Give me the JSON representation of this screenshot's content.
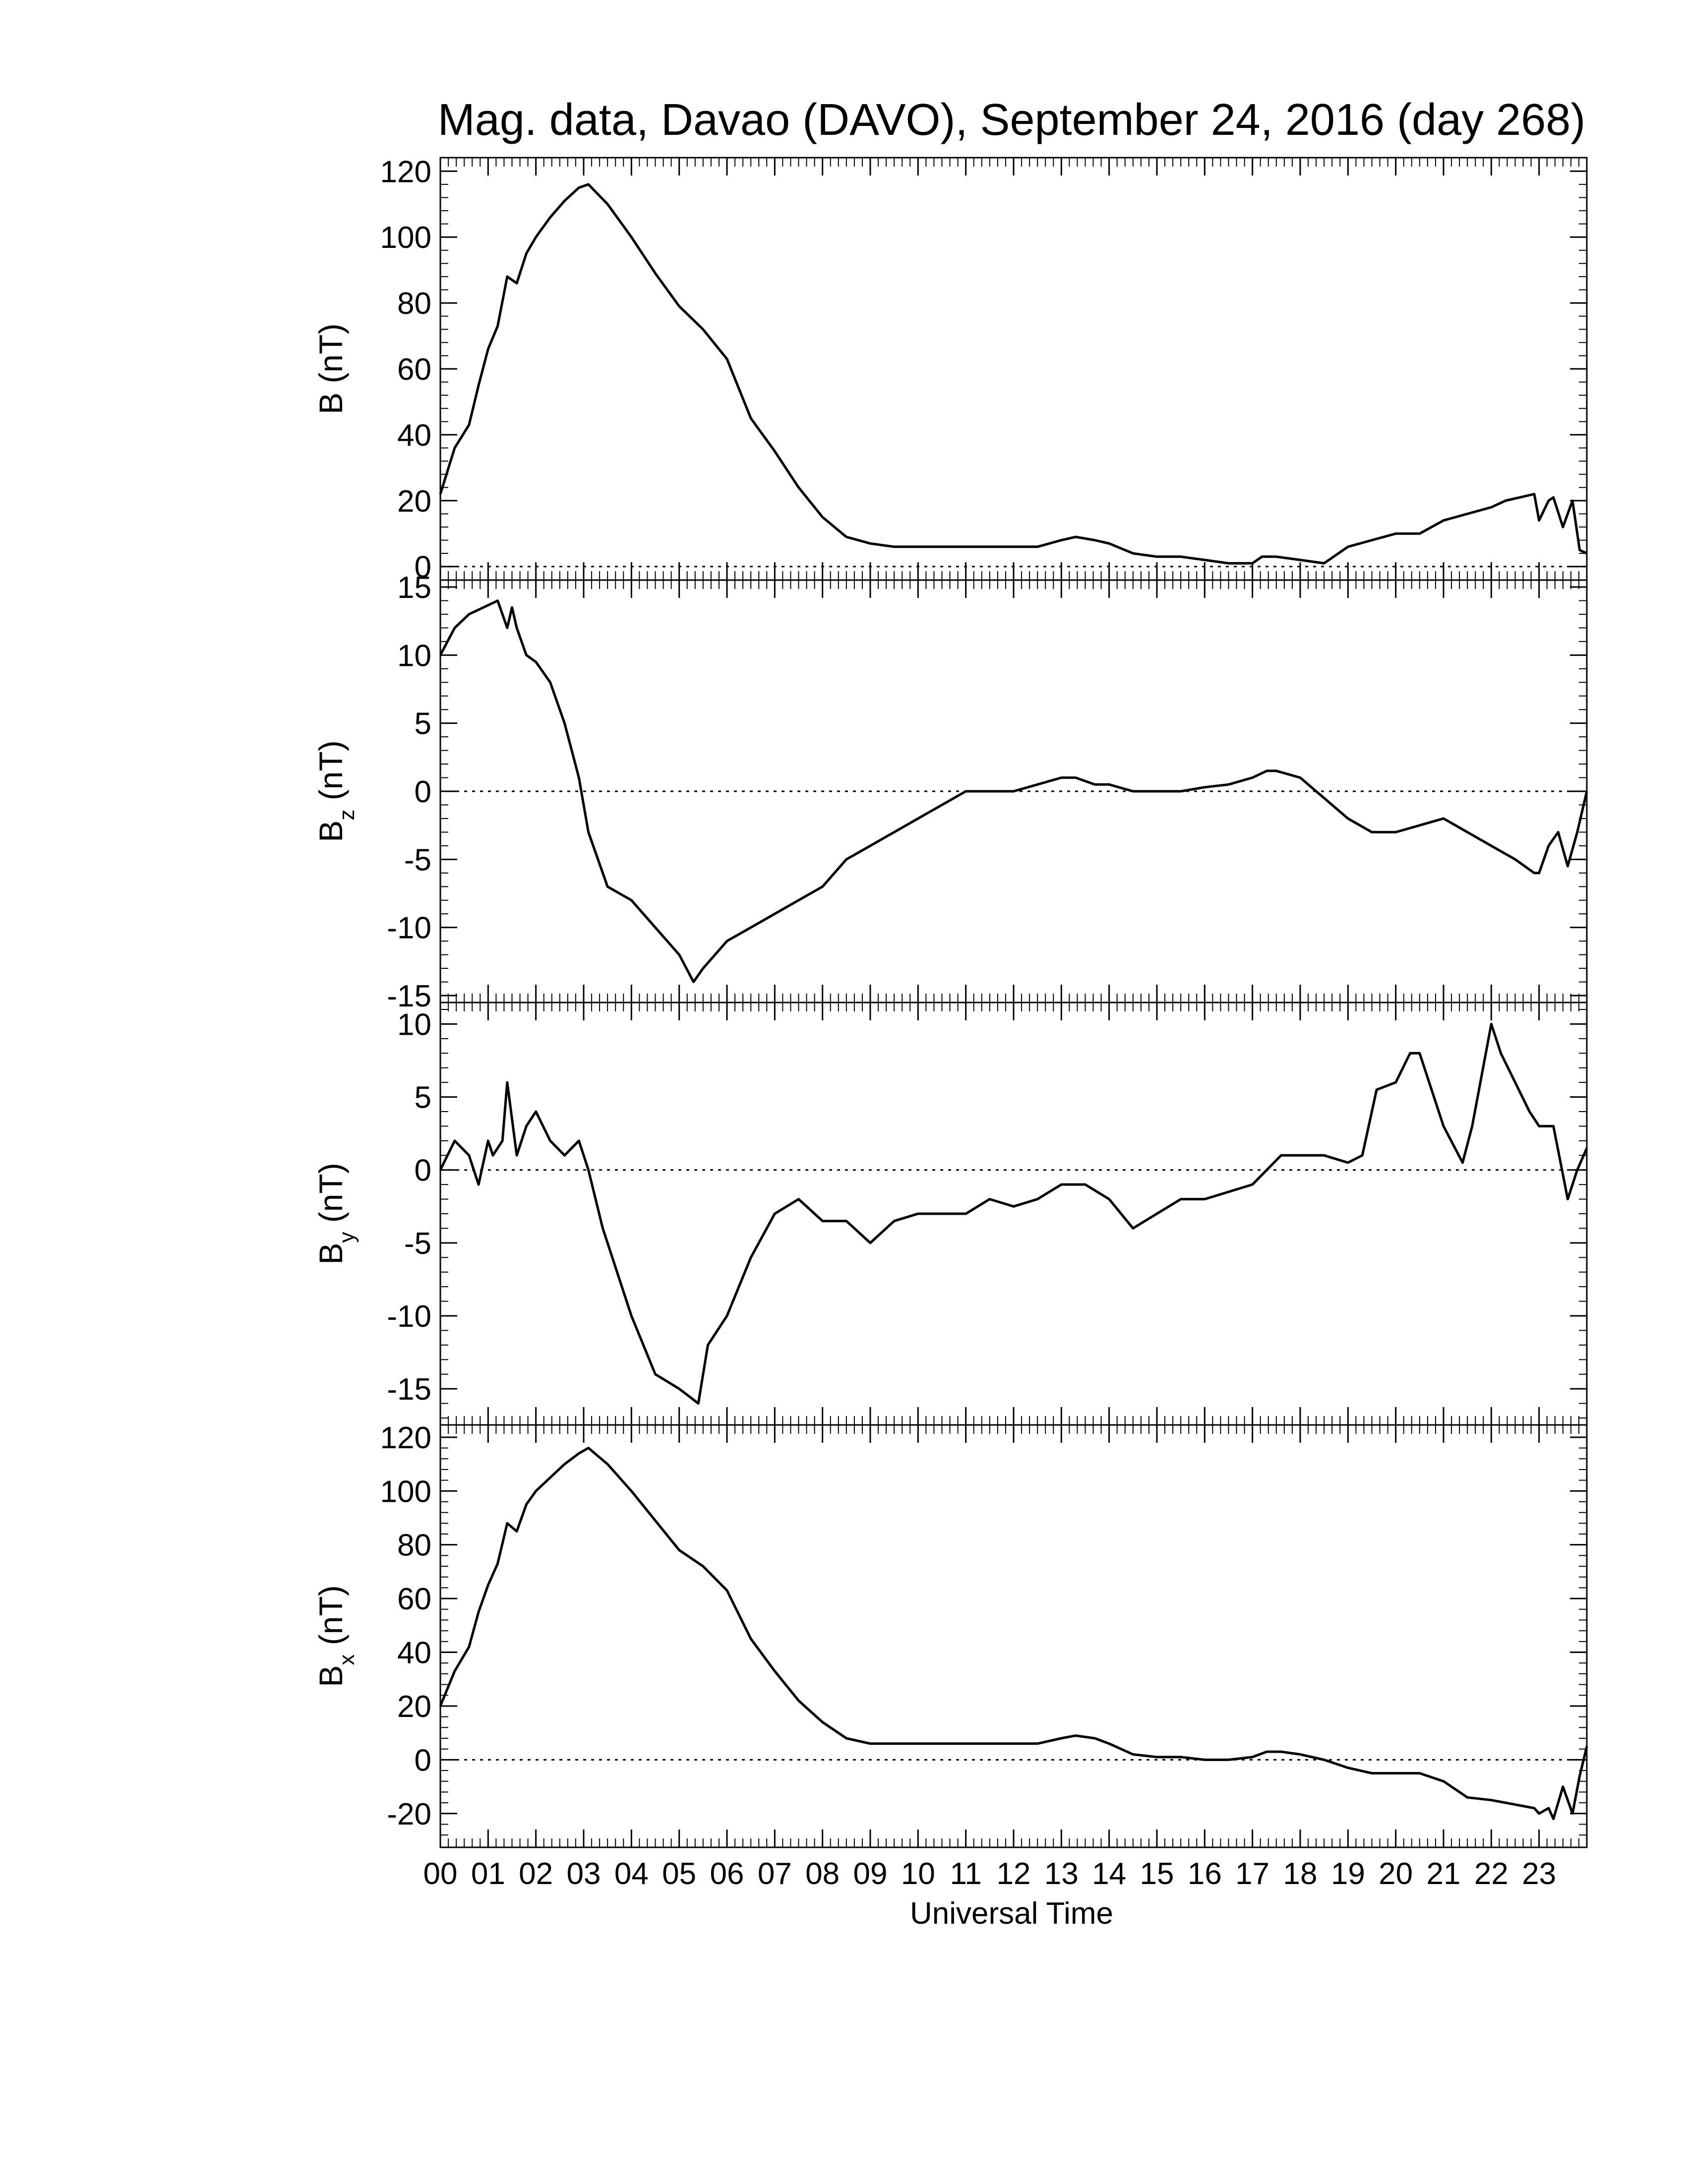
{
  "chart_data": {
    "type": "line",
    "title": "Mag. data, Davao (DAVO), September 24, 2016 (day 268)",
    "xlabel": "Universal Time",
    "x_tick_labels": [
      "00",
      "01",
      "02",
      "03",
      "04",
      "05",
      "06",
      "07",
      "08",
      "09",
      "10",
      "11",
      "12",
      "13",
      "14",
      "15",
      "16",
      "17",
      "18",
      "19",
      "20",
      "21",
      "22",
      "23"
    ],
    "xlim": [
      0,
      24
    ],
    "zero_reference_line": "dotted",
    "panels": [
      {
        "name": "B",
        "ylabel_main": "B",
        "ylabel_sub": "",
        "ylabel_unit": " (nT)",
        "ylim": [
          -2,
          122
        ],
        "yticks": [
          0,
          20,
          40,
          60,
          80,
          100,
          120
        ],
        "ytick_labels": [
          "0",
          "20",
          "40",
          "60",
          "80",
          "100",
          "120"
        ],
        "x": [
          0,
          0.3,
          0.6,
          0.8,
          1.0,
          1.2,
          1.4,
          1.6,
          1.8,
          2.0,
          2.3,
          2.6,
          2.9,
          3.1,
          3.5,
          4.0,
          4.5,
          5.0,
          5.5,
          6.0,
          6.5,
          7.0,
          7.5,
          8.0,
          8.5,
          9.0,
          9.5,
          10.0,
          10.5,
          11.0,
          11.5,
          12.0,
          12.5,
          13.0,
          13.3,
          13.7,
          14.0,
          14.5,
          15.0,
          15.5,
          16.0,
          16.5,
          17.0,
          17.2,
          17.5,
          18.0,
          18.5,
          19.0,
          19.5,
          20.0,
          20.5,
          21.0,
          21.5,
          22.0,
          22.3,
          22.6,
          22.9,
          23.0,
          23.2,
          23.3,
          23.5,
          23.7,
          23.85,
          24.0
        ],
        "y": [
          22,
          36,
          43,
          55,
          66,
          73,
          88,
          86,
          95,
          100,
          106,
          111,
          115,
          116,
          110,
          100,
          89,
          79,
          72,
          63,
          45,
          35,
          24,
          15,
          9,
          7,
          6,
          6,
          6,
          6,
          6,
          6,
          6,
          8,
          9,
          8,
          7,
          4,
          3,
          3,
          2,
          1,
          1,
          3,
          3,
          2,
          1,
          6,
          8,
          10,
          10,
          14,
          16,
          18,
          20,
          21,
          22,
          14,
          20,
          21,
          12,
          20,
          5,
          4
        ]
      },
      {
        "name": "Bz",
        "ylabel_main": "B",
        "ylabel_sub": "z",
        "ylabel_unit": " (nT)",
        "ylim": [
          -15,
          15
        ],
        "yticks": [
          -15,
          -10,
          -5,
          0,
          5,
          10,
          15
        ],
        "ytick_labels": [
          "-15",
          "-10",
          "-5",
          "0",
          "5",
          "10",
          "15"
        ],
        "x": [
          0,
          0.3,
          0.6,
          0.9,
          1.2,
          1.4,
          1.5,
          1.6,
          1.8,
          2.0,
          2.3,
          2.6,
          2.9,
          3.1,
          3.5,
          4.0,
          4.5,
          5.0,
          5.3,
          5.5,
          6.0,
          6.5,
          7.0,
          7.5,
          8.0,
          8.5,
          9.0,
          9.5,
          10.0,
          10.5,
          11.0,
          11.5,
          12.0,
          12.5,
          13.0,
          13.3,
          13.7,
          14.0,
          14.5,
          15.0,
          15.5,
          16.0,
          16.5,
          17.0,
          17.3,
          17.5,
          18.0,
          18.5,
          19.0,
          19.5,
          20.0,
          20.5,
          21.0,
          21.5,
          22.0,
          22.5,
          22.9,
          23.0,
          23.2,
          23.4,
          23.6,
          23.8,
          24.0
        ],
        "y": [
          10,
          12,
          13,
          13.5,
          14,
          12,
          13.5,
          12,
          10,
          9.5,
          8,
          5,
          1,
          -3,
          -7,
          -8,
          -10,
          -12,
          -14,
          -13,
          -11,
          -10,
          -9,
          -8,
          -7,
          -5,
          -4,
          -3,
          -2,
          -1,
          0,
          0,
          0,
          0.5,
          1,
          1,
          0.5,
          0.5,
          0,
          0,
          0,
          0.3,
          0.5,
          1,
          1.5,
          1.5,
          1,
          -0.5,
          -2,
          -3,
          -3,
          -2.5,
          -2,
          -3,
          -4,
          -5,
          -6,
          -6,
          -4,
          -3,
          -5.5,
          -3,
          0
        ]
      },
      {
        "name": "By",
        "ylabel_main": "B",
        "ylabel_sub": "y",
        "ylabel_unit": " (nT)",
        "ylim": [
          -17,
          11
        ],
        "yticks": [
          -15,
          -10,
          -5,
          0,
          5,
          10
        ],
        "ytick_labels": [
          "-15",
          "-10",
          "-5",
          "0",
          "5",
          "10"
        ],
        "x": [
          0,
          0.3,
          0.6,
          0.8,
          1.0,
          1.1,
          1.3,
          1.4,
          1.6,
          1.8,
          2.0,
          2.3,
          2.6,
          2.9,
          3.1,
          3.4,
          3.7,
          4.0,
          4.5,
          5.0,
          5.4,
          5.6,
          6.0,
          6.5,
          7.0,
          7.5,
          8.0,
          8.5,
          9.0,
          9.5,
          10.0,
          10.5,
          11.0,
          11.5,
          12.0,
          12.5,
          13.0,
          13.5,
          14.0,
          14.5,
          15.0,
          15.5,
          16.0,
          16.5,
          17.0,
          17.3,
          17.6,
          18.0,
          18.5,
          19.0,
          19.3,
          19.6,
          20.0,
          20.3,
          20.5,
          21.0,
          21.4,
          21.6,
          22.0,
          22.2,
          22.5,
          22.8,
          23.0,
          23.3,
          23.6,
          23.8,
          24.0
        ],
        "y": [
          0,
          2,
          1,
          -1,
          2,
          1,
          2,
          6,
          1,
          3,
          4,
          2,
          1,
          2,
          0,
          -4,
          -7,
          -10,
          -14,
          -15,
          -16,
          -12,
          -10,
          -6,
          -3,
          -2,
          -3.5,
          -3.5,
          -5,
          -3.5,
          -3,
          -3,
          -3,
          -2,
          -2.5,
          -2,
          -1,
          -1,
          -2,
          -4,
          -3,
          -2,
          -2,
          -1.5,
          -1,
          0,
          1,
          1,
          1,
          0.5,
          1,
          5.5,
          6,
          8,
          8,
          3,
          0.5,
          3,
          10,
          8,
          6,
          4,
          3,
          3,
          -2,
          0,
          1.5
        ]
      },
      {
        "name": "Bx",
        "ylabel_main": "B",
        "ylabel_sub": "x",
        "ylabel_unit": " (nT)",
        "ylim": [
          -30,
          122
        ],
        "yticks": [
          -20,
          0,
          20,
          40,
          60,
          80,
          100,
          120
        ],
        "ytick_labels": [
          "-20",
          "0",
          "20",
          "40",
          "60",
          "80",
          "100",
          "120"
        ],
        "x": [
          0,
          0.3,
          0.6,
          0.8,
          1.0,
          1.2,
          1.4,
          1.6,
          1.8,
          2.0,
          2.3,
          2.6,
          2.9,
          3.1,
          3.5,
          4.0,
          4.5,
          5.0,
          5.5,
          6.0,
          6.5,
          7.0,
          7.5,
          8.0,
          8.5,
          9.0,
          9.5,
          10.0,
          10.5,
          11.0,
          11.5,
          12.0,
          12.5,
          13.0,
          13.3,
          13.7,
          14.0,
          14.5,
          15.0,
          15.5,
          16.0,
          16.5,
          17.0,
          17.3,
          17.6,
          18.0,
          18.5,
          19.0,
          19.5,
          20.0,
          20.5,
          21.0,
          21.5,
          22.0,
          22.3,
          22.6,
          22.9,
          23.0,
          23.2,
          23.3,
          23.5,
          23.7,
          23.85,
          24.0
        ],
        "y": [
          20,
          33,
          42,
          55,
          65,
          73,
          88,
          85,
          95,
          100,
          105,
          110,
          114,
          116,
          110,
          100,
          89,
          78,
          72,
          63,
          45,
          33,
          22,
          14,
          8,
          6,
          6,
          6,
          6,
          6,
          6,
          6,
          6,
          8,
          9,
          8,
          6,
          2,
          1,
          1,
          0,
          0,
          1,
          3,
          3,
          2,
          0,
          -3,
          -5,
          -5,
          -5,
          -8,
          -14,
          -15,
          -16,
          -17,
          -18,
          -20,
          -18,
          -22,
          -10,
          -20,
          -6,
          5
        ]
      }
    ]
  }
}
